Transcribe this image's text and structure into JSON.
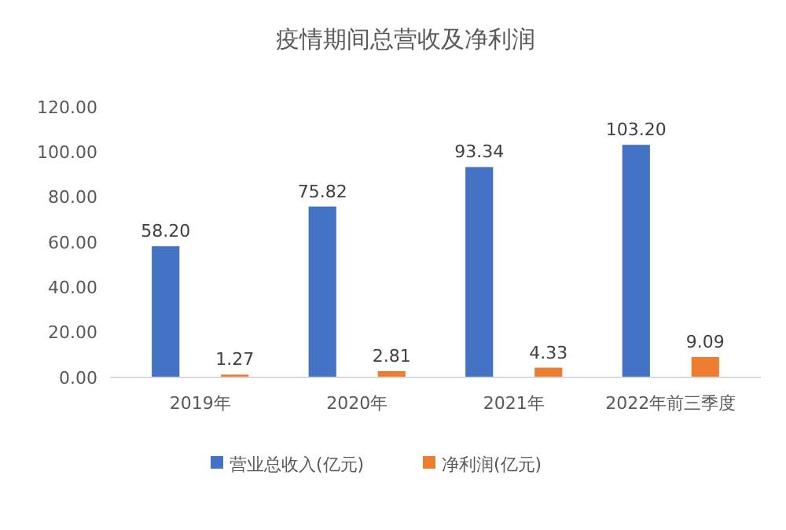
{
  "chart_data": {
    "type": "bar",
    "title": "疫情期间总营收及净利润",
    "categories": [
      "2019年",
      "2020年",
      "2021年",
      "2022年前三季度"
    ],
    "series": [
      {
        "name": "营业总收入(亿元)",
        "color": "#4472c4",
        "values": [
          58.2,
          75.82,
          93.34,
          103.2
        ],
        "value_labels": [
          "58.20",
          "75.82",
          "93.34",
          "103.20"
        ]
      },
      {
        "name": "净利润(亿元)",
        "color": "#ed7d31",
        "values": [
          1.27,
          2.81,
          4.33,
          9.09
        ],
        "value_labels": [
          "1.27",
          "2.81",
          "4.33",
          "9.09"
        ]
      }
    ],
    "ylim": [
      0,
      120
    ],
    "yticks": [
      {
        "value": 0,
        "label": "0.00"
      },
      {
        "value": 20,
        "label": "20.00"
      },
      {
        "value": 40,
        "label": "40.00"
      },
      {
        "value": 60,
        "label": "60.00"
      },
      {
        "value": 80,
        "label": "80.00"
      },
      {
        "value": 100,
        "label": "100.00"
      },
      {
        "value": 120,
        "label": "120.00"
      }
    ],
    "legend": "bottom"
  }
}
